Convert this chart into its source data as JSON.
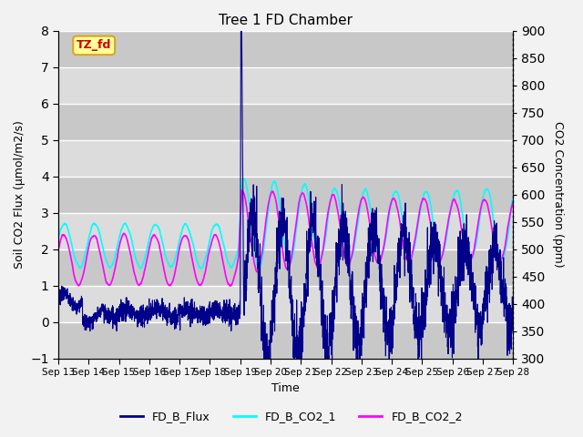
{
  "title": "Tree 1 FD Chamber",
  "xlabel": "Time",
  "ylabel_left": "Soil CO2 Flux (μmol/m2/s)",
  "ylabel_right": "CO2 Concentration (ppm)",
  "ylim_left": [
    -1.0,
    8.0
  ],
  "ylim_right": [
    300,
    900
  ],
  "xtick_labels": [
    "Sep 13",
    "Sep 14",
    "Sep 15",
    "Sep 16",
    "Sep 17",
    "Sep 18",
    "Sep 19",
    "Sep 20",
    "Sep 21",
    "Sep 22",
    "Sep 23",
    "Sep 24",
    "Sep 25",
    "Sep 26",
    "Sep 27",
    "Sep 28"
  ],
  "yticks_left": [
    -1.0,
    0.0,
    1.0,
    2.0,
    3.0,
    4.0,
    5.0,
    6.0,
    7.0,
    8.0
  ],
  "yticks_right": [
    300,
    350,
    400,
    450,
    500,
    550,
    600,
    650,
    700,
    750,
    800,
    850,
    900
  ],
  "flux_color": "#00008B",
  "co2_1_color": "#00FFFF",
  "co2_2_color": "#FF00FF",
  "legend_labels": [
    "FD_B_Flux",
    "FD_B_CO2_1",
    "FD_B_CO2_2"
  ],
  "annotation_text": "TZ_fd",
  "annotation_color_bg": "#FFFF99",
  "annotation_color_border": "#DAA520",
  "annotation_color_text": "#CC0000",
  "plot_bg_light": "#DCDCDC",
  "plot_bg_dark": "#C8C8C8",
  "grid_color": "#FFFFFF",
  "linewidth_flux": 0.8,
  "linewidth_co2": 1.2
}
